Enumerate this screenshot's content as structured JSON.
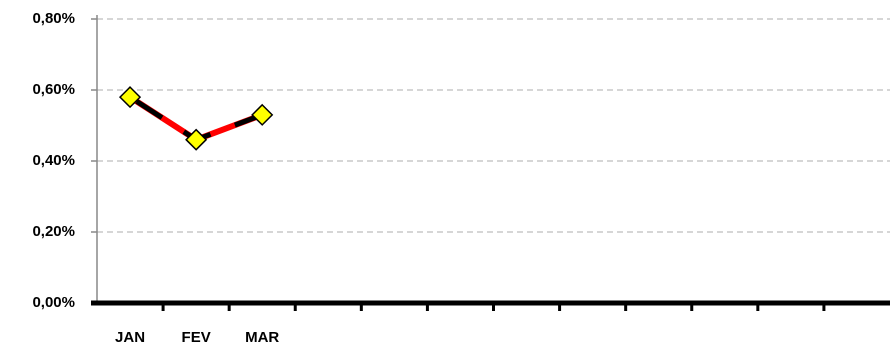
{
  "chart_data": {
    "type": "line",
    "categories": [
      "JAN",
      "FEV",
      "MAR",
      null,
      null,
      null,
      null,
      null,
      null,
      null,
      null,
      null
    ],
    "values": [
      0.58,
      0.46,
      0.53,
      null,
      null,
      null,
      null,
      null,
      null,
      null,
      null,
      null
    ],
    "color": "#ff0000",
    "marker_color": "#ffff00",
    "ylim": [
      0,
      0.8
    ],
    "yticks": [
      {
        "value": 0,
        "label": "0,00%"
      },
      {
        "value": 0.2,
        "label": "0,20%"
      },
      {
        "value": 0.4,
        "label": "0,40%"
      },
      {
        "value": 0.6,
        "label": "0,60%"
      },
      {
        "value": 0.8,
        "label": "0,80%"
      }
    ],
    "grid": true
  }
}
